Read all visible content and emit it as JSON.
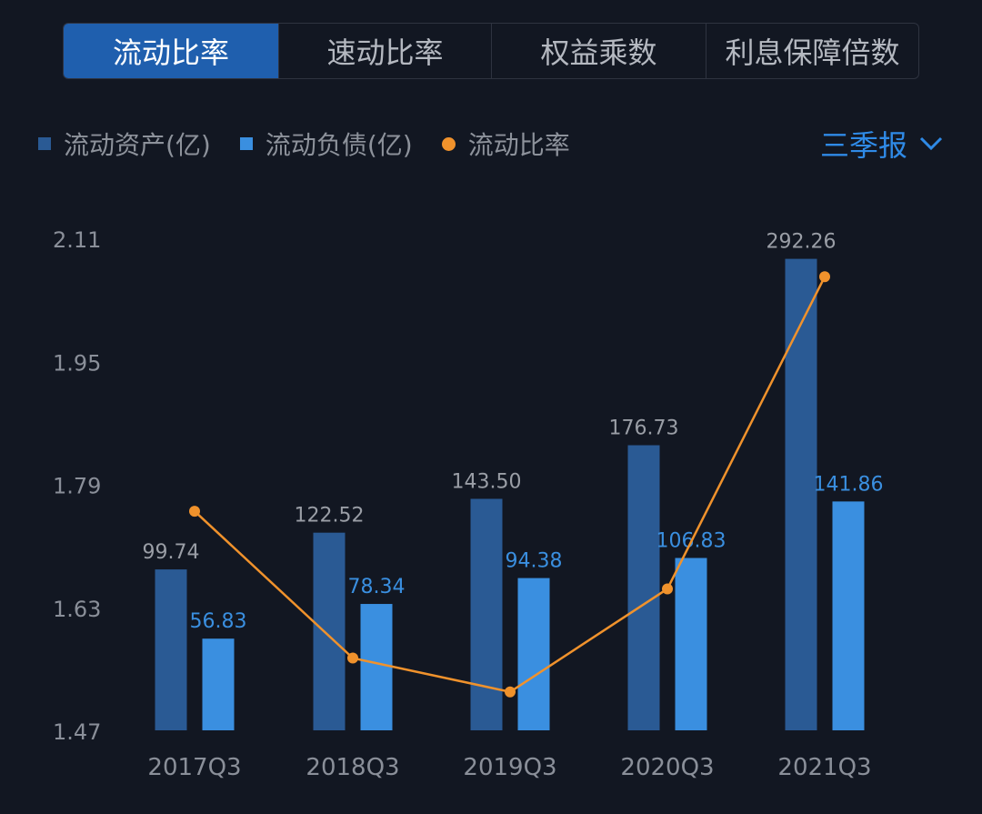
{
  "tabs": [
    {
      "label": "流动比率",
      "active": true
    },
    {
      "label": "速动比率",
      "active": false
    },
    {
      "label": "权益乘数",
      "active": false
    },
    {
      "label": "利息保障倍数",
      "active": false
    }
  ],
  "legend": [
    {
      "label": "流动资产(亿)",
      "color": "#2a5a94",
      "shape": "square"
    },
    {
      "label": "流动负债(亿)",
      "color": "#3a8fe0",
      "shape": "square"
    },
    {
      "label": "流动比率",
      "color": "#f0922c",
      "shape": "dot"
    }
  ],
  "period_selector": {
    "label": "三季报",
    "icon": "chevron-down-icon",
    "color": "#2f8ae6"
  },
  "chart_data": {
    "type": "bar",
    "categories": [
      "2017Q3",
      "2018Q3",
      "2019Q3",
      "2020Q3",
      "2021Q3"
    ],
    "series": [
      {
        "name": "流动资产(亿)",
        "type": "bar",
        "color": "#2a5a94",
        "values": [
          99.74,
          122.52,
          143.5,
          176.73,
          292.26
        ],
        "labels": [
          "99.74",
          "122.52",
          "143.50",
          "176.73",
          "292.26"
        ],
        "label_color": "#9a9ea6"
      },
      {
        "name": "流动负债(亿)",
        "type": "bar",
        "color": "#3a8fe0",
        "values": [
          56.83,
          78.34,
          94.38,
          106.83,
          141.86
        ],
        "labels": [
          "56.83",
          "78.34",
          "94.38",
          "106.83",
          "141.86"
        ],
        "label_color": "#3a8fe0"
      },
      {
        "name": "流动比率",
        "type": "line",
        "color": "#f0922c",
        "values": [
          1.755,
          1.564,
          1.52,
          1.654,
          2.06
        ]
      }
    ],
    "yaxis": {
      "ticks": [
        "2.11",
        "1.95",
        "1.79",
        "1.63",
        "1.47"
      ],
      "tick_values": [
        2.11,
        1.95,
        1.79,
        1.63,
        1.47
      ],
      "ylim": [
        1.47,
        2.11
      ]
    },
    "bar_axis_max": 305,
    "grid": false,
    "legend_position": "top-left"
  }
}
